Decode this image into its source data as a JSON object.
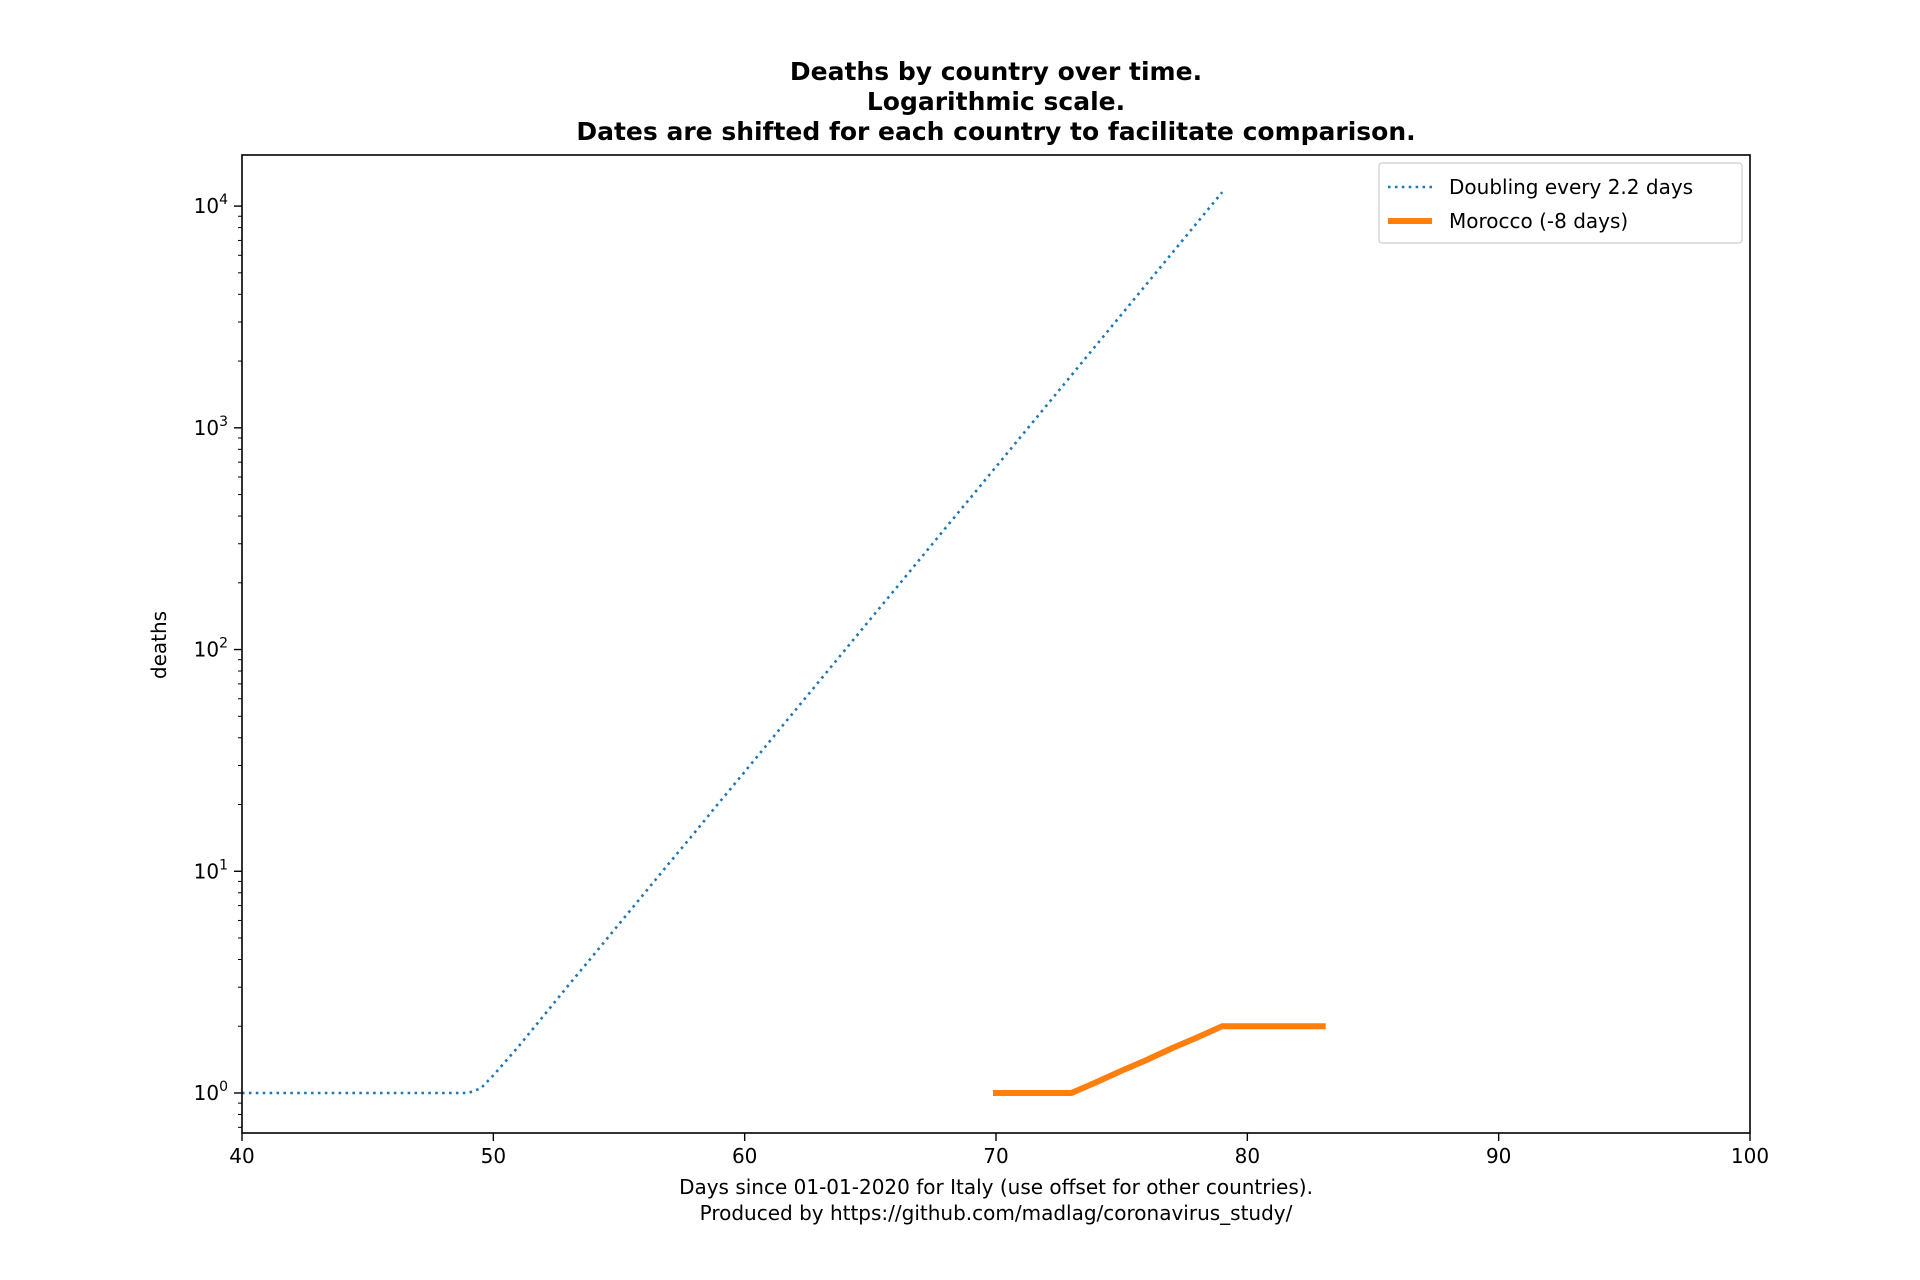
{
  "chart_data": {
    "type": "line",
    "title": [
      "Deaths by country over time.",
      "Logarithmic scale.",
      "Dates are shifted for each country to facilitate comparison."
    ],
    "xlabel": [
      "Days since 01-01-2020 for Italy (use offset for other countries).",
      "Produced by https://github.com/madlag/coronavirus_study/"
    ],
    "ylabel": "deaths",
    "xlim": [
      40,
      100
    ],
    "ylim": [
      0.66,
      17000
    ],
    "yscale": "log",
    "x_ticks": [
      "40",
      "50",
      "60",
      "70",
      "80",
      "90",
      "100"
    ],
    "y_ticks": [
      {
        "value": 1,
        "base": "10",
        "exp": "0"
      },
      {
        "value": 10,
        "base": "10",
        "exp": "1"
      },
      {
        "value": 100,
        "base": "10",
        "exp": "2"
      },
      {
        "value": 1000,
        "base": "10",
        "exp": "3"
      },
      {
        "value": 10000,
        "base": "10",
        "exp": "4"
      }
    ],
    "grid": false,
    "legend_position": "top-right",
    "series": [
      {
        "name": "Doubling every 2.2 days",
        "color": "#1f77b4",
        "style": "dotted",
        "x": [
          40,
          41,
          42,
          43,
          44,
          45,
          46,
          47,
          48,
          49,
          49.5,
          50,
          51,
          52,
          53,
          54,
          55,
          56,
          57,
          58,
          59,
          60,
          61,
          62,
          63,
          64,
          65,
          66,
          67,
          68,
          69,
          70,
          71,
          72,
          73,
          74,
          75,
          76,
          77,
          78,
          79
        ],
        "y": [
          1,
          1,
          1,
          1,
          1,
          1,
          1,
          1,
          1,
          1,
          1.05,
          1.2,
          1.62,
          2.23,
          3.07,
          4.21,
          5.78,
          7.93,
          10.9,
          14.9,
          20.5,
          28.1,
          38.6,
          53.0,
          72.7,
          99.8,
          137,
          188,
          258,
          354,
          486,
          667,
          916,
          1257,
          1726,
          2369,
          3252,
          4464,
          6128,
          8413,
          11549
        ]
      },
      {
        "name": "Morocco (-8 days)",
        "color": "#ff7f0e",
        "style": "solid",
        "x": [
          70,
          71,
          72,
          73,
          74,
          75,
          76,
          77,
          78,
          79,
          80,
          81,
          82,
          83
        ],
        "y": [
          1,
          1,
          1,
          1,
          1.12,
          1.26,
          1.41,
          1.59,
          1.78,
          2,
          2,
          2,
          2,
          2
        ]
      }
    ]
  }
}
